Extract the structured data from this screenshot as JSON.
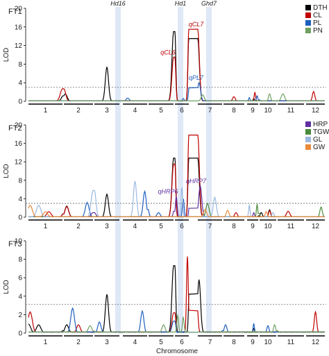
{
  "chart_data": [
    {
      "type": "line",
      "panel_label": "FT1",
      "ylabel": "LOD",
      "xlabel": "",
      "ylim": [
        0,
        20
      ],
      "yticks": [
        0,
        4,
        8,
        12,
        16,
        20
      ],
      "threshold": 3,
      "legend": [
        "DTH",
        "CL",
        "PL",
        "PN"
      ],
      "annotations": [
        {
          "text": "qCL6",
          "color": "#c00000",
          "x": 6,
          "y": 9.5
        },
        {
          "text": "qCL7",
          "color": "#c00000",
          "x": 7,
          "y": 15.5
        },
        {
          "text": "qPL7",
          "color": "#1f5fbf",
          "x": 7,
          "y": 4.0
        }
      ],
      "series": [
        {
          "name": "DTH",
          "color": "#000000",
          "peaks": [
            [
              2.05,
              1.6
            ],
            [
              3.5,
              7.4
            ],
            [
              6.0,
              15.0
            ],
            [
              7.0,
              13.5
            ],
            [
              9.6,
              0.6
            ]
          ]
        },
        {
          "name": "CL",
          "color": "#c00000",
          "peaks": [
            [
              2.0,
              2.7
            ],
            [
              6.0,
              9.5
            ],
            [
              7.0,
              15.5
            ],
            [
              8.5,
              1.0
            ],
            [
              9.7,
              1.9
            ],
            [
              12.4,
              2.1
            ]
          ]
        },
        {
          "name": "PL",
          "color": "#1f5fbf",
          "peaks": [
            [
              4.2,
              0.7
            ],
            [
              6.6,
              0.6
            ],
            [
              7.05,
              4.0
            ],
            [
              9.2,
              0.8
            ],
            [
              9.9,
              1.2
            ]
          ]
        },
        {
          "name": "PN",
          "color": "#70a060",
          "peaks": [
            [
              7.2,
              1.4
            ],
            [
              10.6,
              1.6
            ],
            [
              11.2,
              1.6
            ]
          ]
        }
      ]
    },
    {
      "type": "line",
      "panel_label": "FT2",
      "ylabel": "LOD",
      "xlabel": "",
      "ylim": [
        0,
        20
      ],
      "yticks": [
        0,
        4,
        8,
        12,
        16,
        20
      ],
      "threshold": 3,
      "legend": [
        "HRP",
        "TGW",
        "GL",
        "GW"
      ],
      "annotations": [
        {
          "text": "qHRP6",
          "color": "#6030a0",
          "x": 6,
          "y": 4.5
        },
        {
          "text": "qHRP7",
          "color": "#6030a0",
          "x": 7,
          "y": 6.8
        }
      ],
      "series": [
        {
          "name": "DTH",
          "color": "#000000",
          "peaks": [
            [
              2.1,
              2.4
            ],
            [
              3.5,
              5.0
            ],
            [
              6.0,
              12.8
            ],
            [
              7.0,
              12.8
            ],
            [
              10.1,
              1.0
            ],
            [
              10.6,
              1.6
            ]
          ]
        },
        {
          "name": "CL",
          "color": "#c00000",
          "peaks": [
            [
              1.6,
              1.2
            ],
            [
              2.1,
              2.3
            ],
            [
              6.0,
              11.5
            ],
            [
              7.0,
              17.8
            ],
            [
              8.6,
              1.0
            ],
            [
              10.6,
              1.4
            ],
            [
              11.4,
              1.3
            ]
          ]
        },
        {
          "name": "PL",
          "color": "#1f5fbf",
          "peaks": [
            [
              2.8,
              3.2
            ],
            [
              4.9,
              5.6
            ],
            [
              5.4,
              1.0
            ],
            [
              6.6,
              4.0
            ]
          ]
        },
        {
          "name": "HRP",
          "color": "#6030a0",
          "peaks": [
            [
              3.0,
              1.0
            ],
            [
              6.1,
              4.5
            ],
            [
              7.1,
              6.8
            ],
            [
              9.6,
              1.0
            ]
          ]
        },
        {
          "name": "TGW",
          "color": "#4a8a3a",
          "peaks": [
            [
              7.4,
              3.0
            ],
            [
              9.9,
              2.7
            ],
            [
              12.8,
              2.2
            ]
          ]
        },
        {
          "name": "GL",
          "color": "#9ab8e0",
          "peaks": [
            [
              1.3,
              2.6
            ],
            [
              3.0,
              5.8
            ],
            [
              4.5,
              7.8
            ],
            [
              6.5,
              6.4
            ],
            [
              7.7,
              4.3
            ],
            [
              9.2,
              2.6
            ],
            [
              10.8,
              1.0
            ]
          ]
        },
        {
          "name": "GW",
          "color": "#e88a3a",
          "peaks": [
            [
              1.05,
              2.6
            ],
            [
              1.5,
              1.2
            ],
            [
              7.3,
              1.7
            ],
            [
              8.2,
              1.5
            ],
            [
              10.4,
              1.2
            ]
          ]
        }
      ]
    },
    {
      "type": "line",
      "panel_label": "FT3",
      "ylabel": "LOD",
      "xlabel": "Chromosome",
      "ylim": [
        0,
        10
      ],
      "yticks": [
        0,
        2,
        4,
        6,
        8,
        10
      ],
      "threshold": 3.1,
      "legend": [],
      "annotations": [],
      "series": [
        {
          "name": "DTH",
          "color": "#000000",
          "peaks": [
            [
              1.0,
              1.0
            ],
            [
              1.3,
              0.9
            ],
            [
              2.1,
              0.9
            ],
            [
              3.5,
              4.2
            ],
            [
              6.0,
              7.3
            ],
            [
              7.05,
              5.8
            ],
            [
              9.6,
              0.5
            ]
          ]
        },
        {
          "name": "CL",
          "color": "#c00000",
          "peaks": [
            [
              1.05,
              2.3
            ],
            [
              2.5,
              0.9
            ],
            [
              6.0,
              2.2
            ],
            [
              6.9,
              8.3
            ],
            [
              12.5,
              2.3
            ]
          ]
        },
        {
          "name": "PL",
          "color": "#1f5fbf",
          "peaks": [
            [
              2.3,
              2.7
            ],
            [
              3.2,
              1.2
            ],
            [
              4.8,
              2.4
            ],
            [
              6.0,
              1.3
            ],
            [
              8.1,
              0.9
            ],
            [
              9.6,
              1.0
            ],
            [
              10.5,
              0.8
            ]
          ]
        },
        {
          "name": "PN",
          "color": "#70a060",
          "peaks": [
            [
              2.9,
              0.8
            ],
            [
              5.6,
              0.9
            ],
            [
              6.2,
              1.9
            ],
            [
              6.6,
              1.7
            ],
            [
              10.9,
              0.9
            ]
          ]
        }
      ]
    }
  ],
  "chromosomes": [
    "1",
    "2",
    "3",
    "4",
    "5",
    "6",
    "7",
    "8",
    "9",
    "10",
    "11",
    "12"
  ],
  "highlight_genes": [
    {
      "label": "Hd16",
      "chromosome": 3
    },
    {
      "label": "Hd1",
      "chromosome": 6
    },
    {
      "label": "Ghd7",
      "chromosome": 7
    }
  ],
  "legend_colors": {
    "DTH": "#000000",
    "CL": "#c00000",
    "PL": "#1f5fbf",
    "PN": "#70a060",
    "HRP": "#6030a0",
    "TGW": "#4a8a3a",
    "GL": "#9ab8e0",
    "GW": "#e88a3a"
  }
}
